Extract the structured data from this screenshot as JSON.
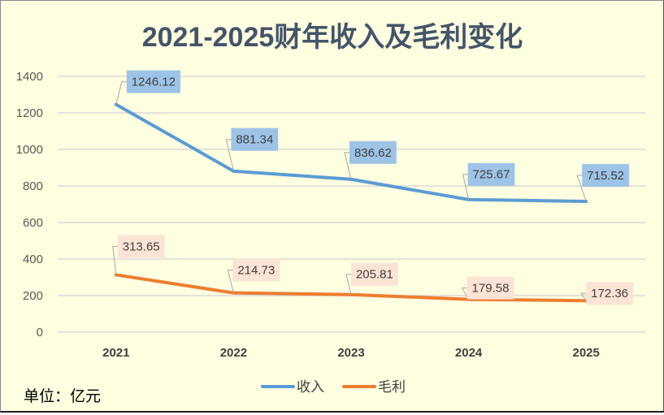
{
  "chart_data": {
    "type": "line",
    "title": "2021-2025财年收入及毛利变化",
    "categories": [
      "2021",
      "2022",
      "2023",
      "2024",
      "2025"
    ],
    "series": [
      {
        "name": "收入",
        "color": "#5B9BD5",
        "label_bg": "#9DC3E6",
        "values": [
          1246.12,
          881.34,
          836.62,
          725.67,
          715.52
        ],
        "labels": [
          "1246.12",
          "881.34",
          "836.62",
          "725.67",
          "715.52"
        ]
      },
      {
        "name": "毛利",
        "color": "#ED7D31",
        "label_bg": "#FBE3D6",
        "values": [
          313.65,
          214.73,
          205.81,
          179.58,
          172.36
        ],
        "labels": [
          "313.65",
          "214.73",
          "205.81",
          "179.58",
          "172.36"
        ]
      }
    ],
    "yticks": [
      "0",
      "200",
      "400",
      "600",
      "800",
      "1000",
      "1200",
      "1400"
    ],
    "ylim": [
      0,
      1400
    ],
    "xlabel": "",
    "ylabel": "",
    "grid": true,
    "legend_position": "bottom",
    "unit_note": "单位：亿元"
  }
}
